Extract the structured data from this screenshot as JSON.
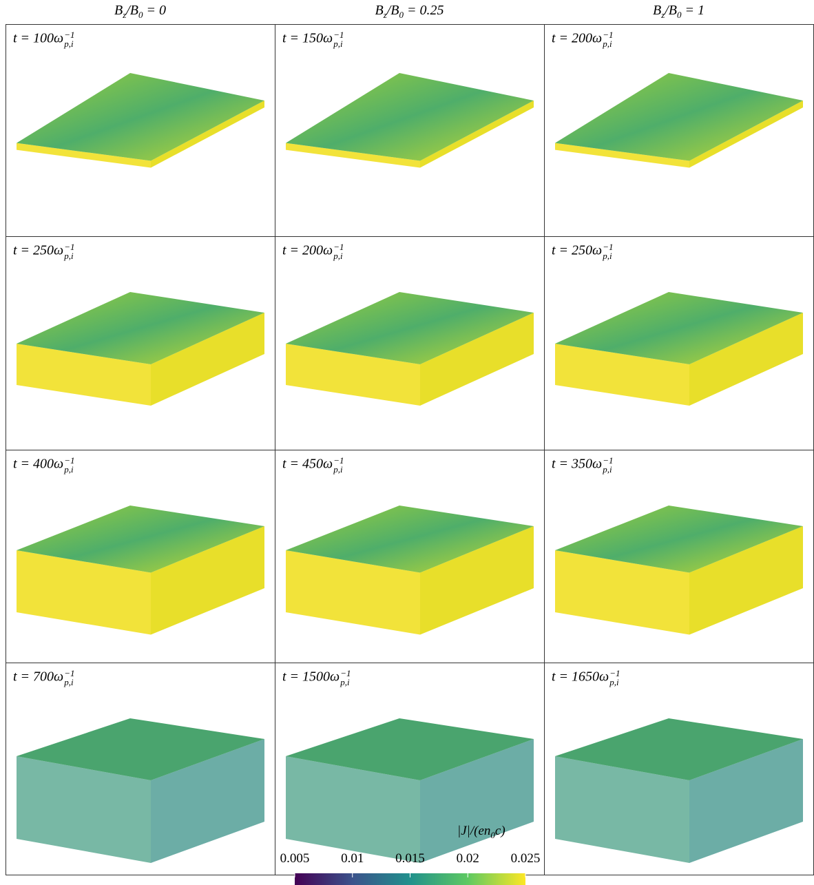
{
  "columns": [
    {
      "header": [
        {
          "text": "B"
        },
        {
          "sub": "z"
        },
        {
          "text": "/B"
        },
        {
          "sub": "0"
        },
        {
          "text": " = 0"
        }
      ]
    },
    {
      "header": [
        {
          "text": "B"
        },
        {
          "sub": "z"
        },
        {
          "text": "/B"
        },
        {
          "sub": "0"
        },
        {
          "text": " = 0.25"
        }
      ]
    },
    {
      "header": [
        {
          "text": "B"
        },
        {
          "sub": "z"
        },
        {
          "text": "/B"
        },
        {
          "sub": "0"
        },
        {
          "text": " = 1"
        }
      ]
    }
  ],
  "panels": [
    [
      {
        "text": "t = 100ω",
        "sub": "p,i",
        "sup": "−1"
      },
      {
        "text": "t = 150ω",
        "sub": "p,i",
        "sup": "−1"
      },
      {
        "text": "t = 200ω",
        "sub": "p,i",
        "sup": "−1"
      }
    ],
    [
      {
        "text": "t = 250ω",
        "sub": "p,i",
        "sup": "−1"
      },
      {
        "text": "t = 200ω",
        "sub": "p,i",
        "sup": "−1"
      },
      {
        "text": "t = 250ω",
        "sub": "p,i",
        "sup": "−1"
      }
    ],
    [
      {
        "text": "t = 400ω",
        "sub": "p,i",
        "sup": "−1"
      },
      {
        "text": "t = 450ω",
        "sub": "p,i",
        "sup": "−1"
      },
      {
        "text": "t = 350ω",
        "sub": "p,i",
        "sup": "−1"
      }
    ],
    [
      {
        "text": "t = 700ω",
        "sub": "p,i",
        "sup": "−1"
      },
      {
        "text": "t = 1500ω",
        "sub": "p,i",
        "sup": "−1"
      },
      {
        "text": "t = 1650ω",
        "sub": "p,i",
        "sup": "−1"
      }
    ]
  ],
  "colorbar": {
    "label": [
      {
        "text": "|J|/(en"
      },
      {
        "sub": "0"
      },
      {
        "text": "c)"
      }
    ],
    "range": [
      0.005,
      0.025
    ],
    "ticks": [
      0.005,
      0.01,
      0.015,
      0.02,
      0.025
    ],
    "colormap": "viridis"
  }
}
